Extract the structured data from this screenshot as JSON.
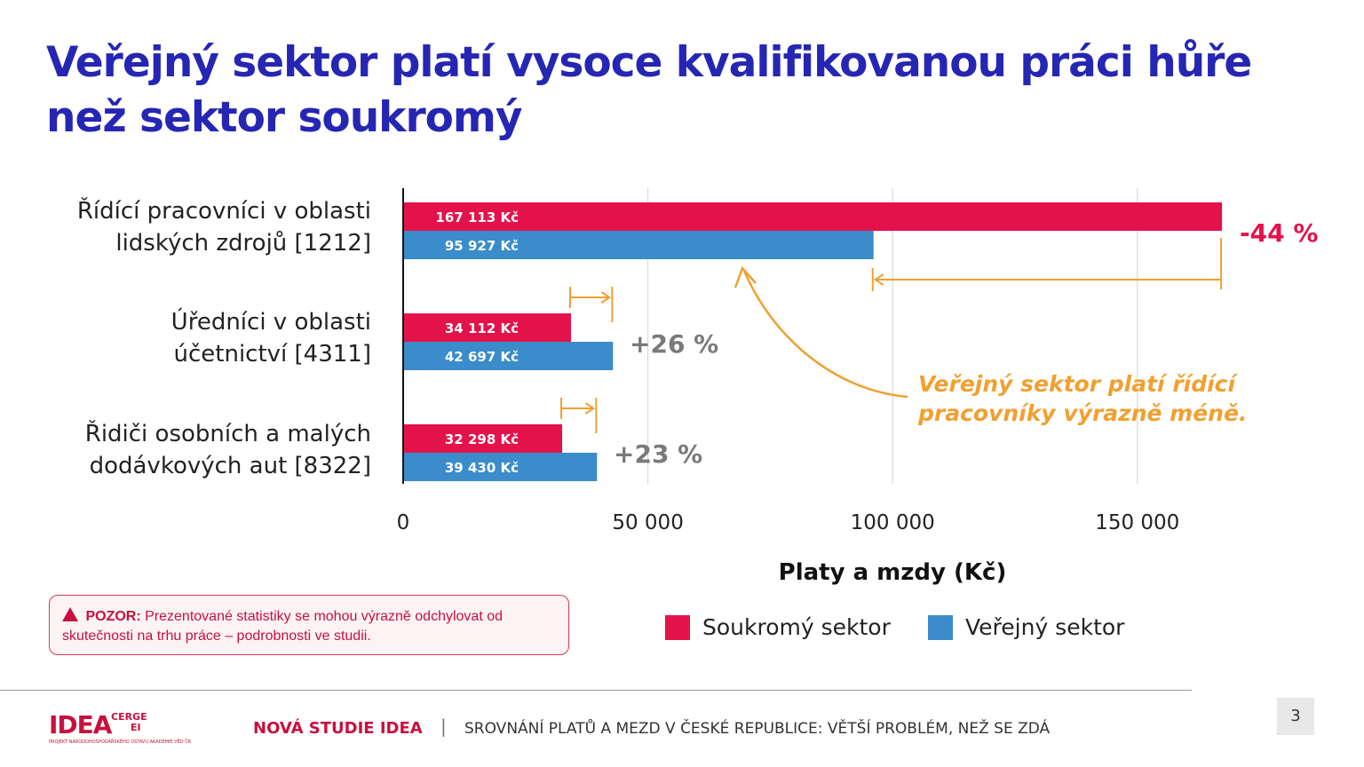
{
  "title_line1": "Veřejný sektor platí vysoce kvalifikovanou práci hůře",
  "title_line2": "než sektor soukromý",
  "chart_data": {
    "type": "bar",
    "orientation": "horizontal",
    "categories": [
      [
        "Řídící pracovníci v oblasti",
        "lidských zdrojů [1212]"
      ],
      [
        "Úředníci v oblasti",
        "účetnictví [4311]"
      ],
      [
        "Řidiči osobních a malých",
        "dodávkových aut [8322]"
      ]
    ],
    "series": [
      {
        "name": "Soukromý sektor",
        "color": "#e4124b",
        "values": [
          167113,
          34112,
          32298
        ],
        "labels": [
          "167 113 Kč",
          "34 112 Kč",
          "32 298 Kč"
        ]
      },
      {
        "name": "Veřejný sektor",
        "color": "#3a8cca",
        "values": [
          95927,
          42697,
          39430
        ],
        "labels": [
          "95 927 Kč",
          "42 697 Kč",
          "39 430 Kč"
        ]
      }
    ],
    "differences": [
      "-44 %",
      "+26 %",
      "+23 %"
    ],
    "difference_colors": [
      "#e4124b",
      "#7a7a7a",
      "#7a7a7a"
    ],
    "xlim": [
      0,
      170000
    ],
    "xticks": [
      0,
      50000,
      100000,
      150000
    ],
    "xtick_labels": [
      "0",
      "50 000",
      "100 000",
      "150 000"
    ],
    "xlabel": "Platy a mzdy (Kč)",
    "grid": true,
    "legend_position": "bottom",
    "annotation": [
      "Veřejný sektor platí řídící",
      "pracovníky výrazně méně."
    ],
    "annotation_color": "#f0a030"
  },
  "warning": {
    "label": "POZOR:",
    "text": "Prezentované statistiky se mohou výrazně odchylovat od skutečnosti na trhu práce – podrobnosti ve studii."
  },
  "footer": {
    "logo_idea": "IDEA",
    "logo_cerge": "CERGE",
    "logo_ei": "EI",
    "logo_sub": "PROJEKT NÁRODOHOSPODÁŘSKÉHO ÚSTAVU AKADEMIE VĚD ČR",
    "study_label": "NOVÁ STUDIE IDEA",
    "separator": "|",
    "study_title": "SROVNÁNÍ PLATŮ A MEZD V ČESKÉ REPUBLICE: VĚTŠÍ PROBLÉM, NEŽ SE ZDÁ",
    "page_number": "3"
  }
}
